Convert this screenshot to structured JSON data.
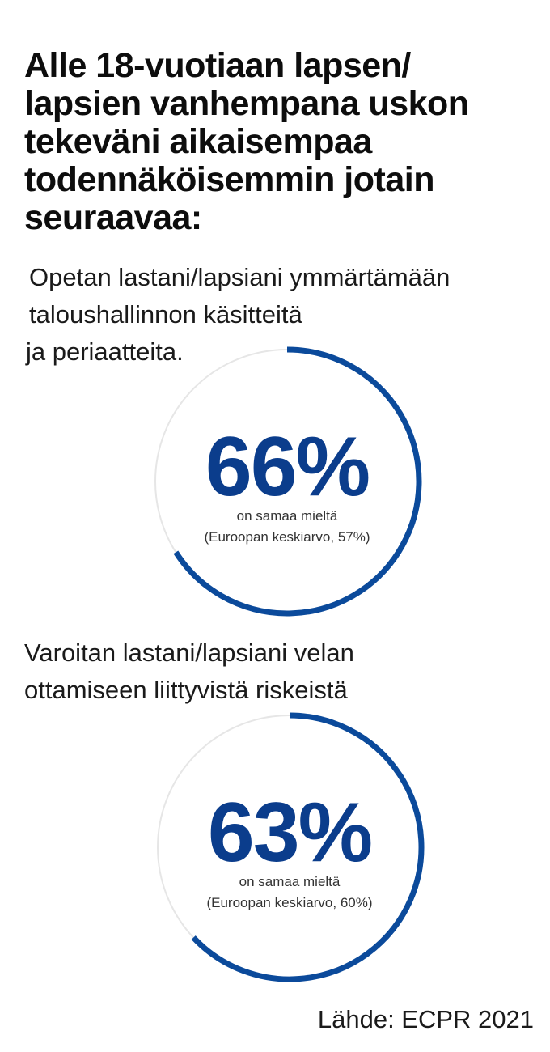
{
  "title_lines": [
    "Alle 18-vuotiaan lapsen/",
    "lapsien vanhempana uskon",
    "tekeväni aikaisempaa",
    "todennäköisemmin jotain",
    "seuraavaa:"
  ],
  "q1": {
    "lines": [
      "Opetan lastani/lapsiani ymmärtämään",
      "taloushallinnon käsitteitä",
      "ja periaatteita."
    ]
  },
  "q2": {
    "lines": [
      "Varoitan lastani/lapsiani velan",
      "ottamiseen liittyvistä riskeistä"
    ]
  },
  "chart_data": [
    {
      "type": "pie",
      "value_percent": 66,
      "value_label": "66%",
      "caption": "on samaa mieltä",
      "benchmark_label": "(Euroopan keskiarvo, 57%)",
      "benchmark_percent": 57,
      "colors": {
        "value_arc": "#0b4a9b",
        "remainder_ring": "#e6e6e6"
      }
    },
    {
      "type": "pie",
      "value_percent": 63,
      "value_label": "63%",
      "caption": "on samaa mieltä",
      "benchmark_label": "(Euroopan keskiarvo, 60%)",
      "benchmark_percent": 60,
      "colors": {
        "value_arc": "#0b4a9b",
        "remainder_ring": "#e6e6e6"
      }
    }
  ],
  "source": "Lähde: ECPR 2021"
}
